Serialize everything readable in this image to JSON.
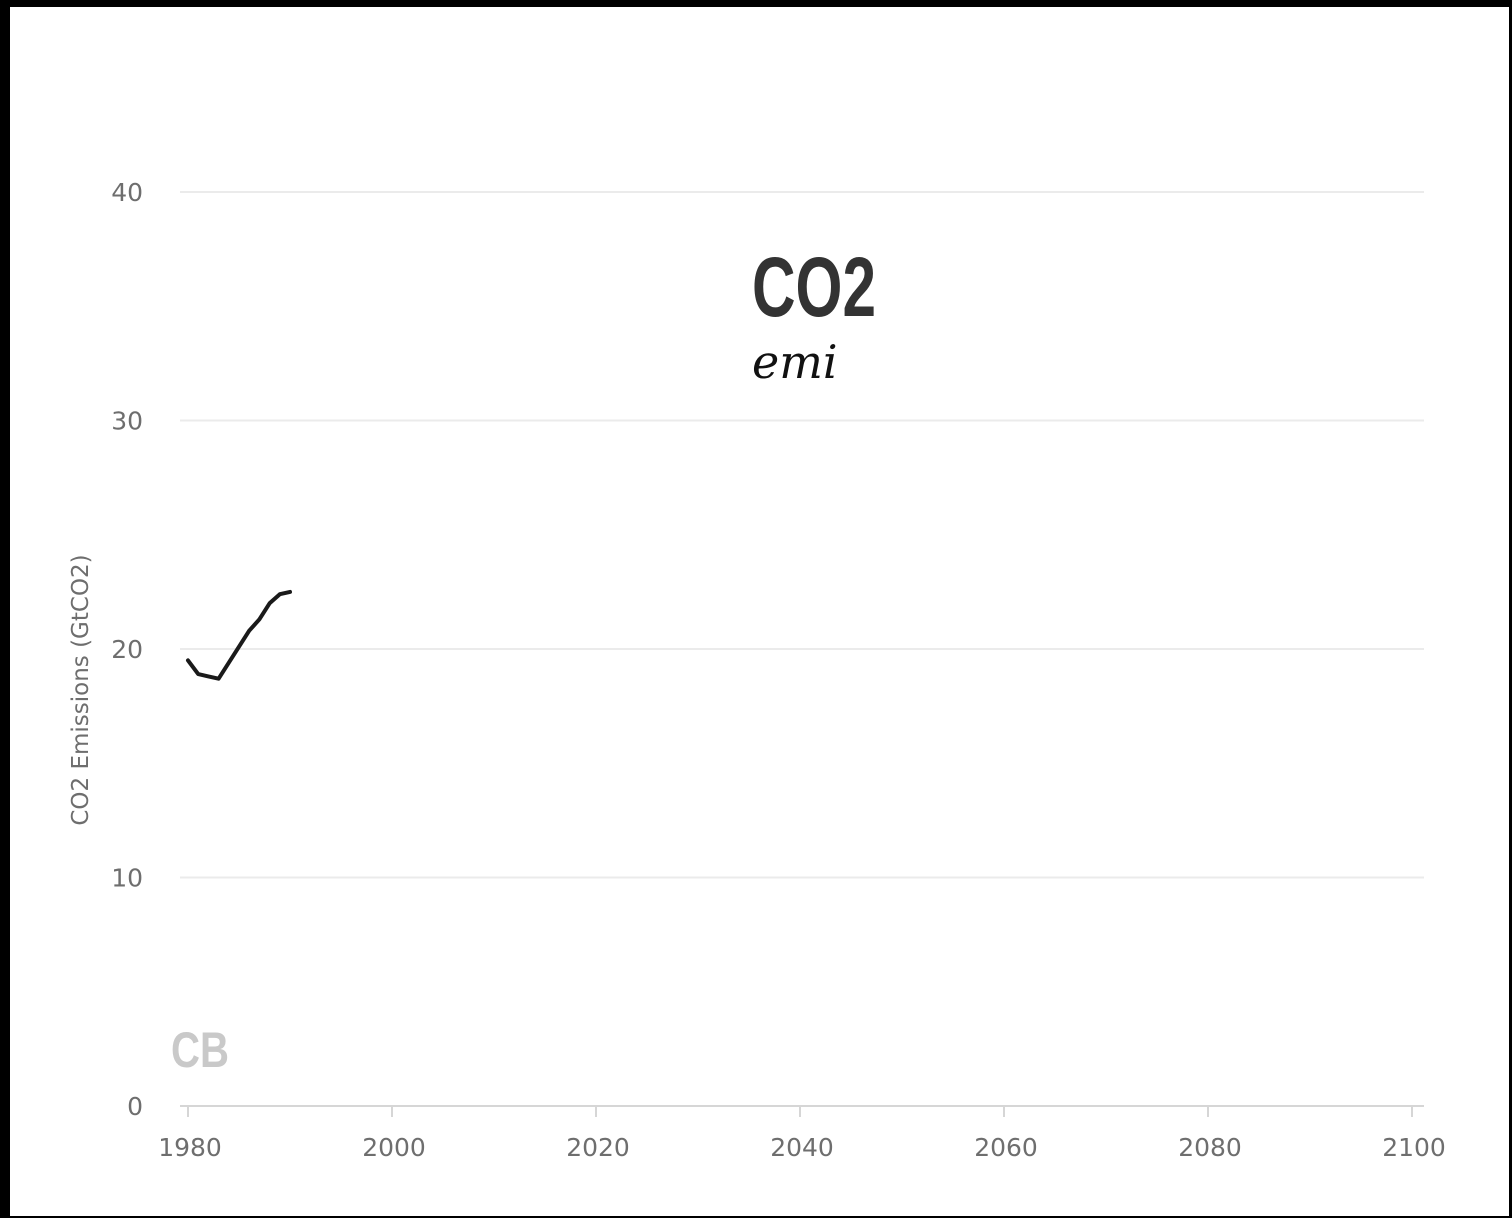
{
  "chart_data": {
    "type": "line",
    "title": "CO2",
    "subtitle": "emi",
    "xlabel": "",
    "ylabel": "CO2 Emissions (GtCO2)",
    "xlim": [
      1980,
      2100
    ],
    "ylim": [
      0,
      40
    ],
    "x_ticks": [
      "1980",
      "2000",
      "2020",
      "2040",
      "2060",
      "2080",
      "2100"
    ],
    "y_ticks": [
      "0",
      "10",
      "20",
      "30",
      "40"
    ],
    "grid": true,
    "series": [
      {
        "color": "#1a1a1a",
        "x": [
          1980,
          1981,
          1982,
          1983,
          1984,
          1985,
          1986,
          1987,
          1988,
          1989,
          1990
        ],
        "y": [
          19.5,
          18.9,
          18.8,
          18.7,
          19.4,
          20.1,
          20.8,
          21.3,
          22.0,
          22.4,
          22.5
        ]
      }
    ],
    "logo_text": "CB"
  }
}
